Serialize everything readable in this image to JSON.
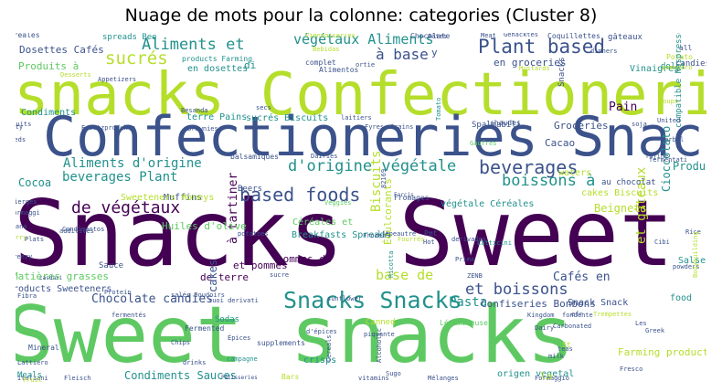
{
  "title": "Nuage de mots pour la colonne: categories (Cluster 8)",
  "colors": {
    "background": "#ffffff",
    "purple": "#440154",
    "indigo": "#3b528b",
    "teal": "#21918c",
    "green": "#5ec962",
    "lime": "#b5de2b"
  },
  "words": [
    {
      "text": "Sweet snacks",
      "color": "green"
    },
    {
      "text": "Snacks Sweet",
      "color": "purple"
    },
    {
      "text": "snacks Confectioneries",
      "color": "lime"
    },
    {
      "text": "Confectioneries Snack",
      "color": "indigo"
    },
    {
      "text": "Snacks Snacks",
      "color": "teal"
    },
    {
      "text": "Plant based",
      "color": "indigo"
    },
    {
      "text": "based foods",
      "color": "indigo"
    },
    {
      "text": "beverages",
      "color": "indigo"
    },
    {
      "text": "boissons à",
      "color": "teal"
    },
    {
      "text": "d'origine végétale",
      "color": "teal"
    },
    {
      "text": "de végétaux",
      "color": "purple"
    },
    {
      "text": "Aliments et",
      "color": "teal"
    },
    {
      "text": "végétaux Aliments",
      "color": "teal"
    },
    {
      "text": "sucrés",
      "color": "lime"
    },
    {
      "text": "à base",
      "color": "indigo"
    },
    {
      "text": "Aliments d'origine",
      "color": "teal"
    },
    {
      "text": "beverages Plant",
      "color": "teal"
    },
    {
      "text": "et boissons",
      "color": "indigo"
    },
    {
      "text": "base de",
      "color": "lime"
    },
    {
      "text": "Biscuits",
      "color": "lime"
    },
    {
      "text": "à tartiner",
      "color": "purple"
    },
    {
      "text": "Pasta",
      "color": "teal"
    },
    {
      "text": "Chocolate candies",
      "color": "indigo"
    },
    {
      "text": "Condiments Sauces",
      "color": "teal"
    },
    {
      "text": "Cafés en",
      "color": "indigo"
    },
    {
      "text": "et gâteaux",
      "color": "lime"
    },
    {
      "text": "Cioccolato",
      "color": "teal"
    },
    {
      "text": "Produits",
      "color": "teal"
    },
    {
      "text": "Beignets",
      "color": "lime"
    },
    {
      "text": "Groceries",
      "color": "indigo"
    },
    {
      "text": "Pain",
      "color": "purple"
    },
    {
      "text": "Cacao",
      "color": "indigo"
    },
    {
      "text": "en groceries",
      "color": "indigo"
    },
    {
      "text": "Dosettes Cafés",
      "color": "indigo"
    },
    {
      "text": "Produits à",
      "color": "green"
    },
    {
      "text": "en dosettes",
      "color": "teal"
    },
    {
      "text": "Condiments",
      "color": "teal"
    },
    {
      "text": "Céréales et",
      "color": "green"
    },
    {
      "text": "Breakfasts Spreads",
      "color": "teal"
    },
    {
      "text": "végétale Céréales",
      "color": "teal"
    },
    {
      "text": "cakes Biscuits",
      "color": "lime"
    },
    {
      "text": "Matières grasses",
      "color": "green"
    },
    {
      "text": "products Sweeteners",
      "color": "indigo"
    },
    {
      "text": "Huiles d'olive",
      "color": "green"
    },
    {
      "text": "Édulcorants",
      "color": "lime"
    },
    {
      "text": "Cocoa",
      "color": "teal"
    },
    {
      "text": "terre Pains",
      "color": "teal"
    },
    {
      "text": "sucrés Biscuits",
      "color": "teal"
    },
    {
      "text": "et pommes",
      "color": "purple"
    },
    {
      "text": "de terre",
      "color": "purple"
    },
    {
      "text": "pommes de",
      "color": "purple"
    },
    {
      "text": "Confiseries Bonbons",
      "color": "indigo"
    },
    {
      "text": "Snack Snack",
      "color": "indigo"
    },
    {
      "text": "food",
      "color": "teal"
    },
    {
      "text": "Farming products",
      "color": "lime"
    },
    {
      "text": "origen vegetal",
      "color": "teal"
    },
    {
      "text": "crisps",
      "color": "teal"
    },
    {
      "text": "cakes",
      "color": "indigo"
    },
    {
      "text": "Vinaigres",
      "color": "teal"
    },
    {
      "text": "Sauce",
      "color": "indigo"
    },
    {
      "text": "Muffins",
      "color": "indigo"
    },
    {
      "text": "Sweeteners Honeys",
      "color": "lime"
    },
    {
      "text": "Beers",
      "color": "indigo"
    },
    {
      "text": "waters",
      "color": "lime"
    },
    {
      "text": "au chocolat",
      "color": "indigo"
    },
    {
      "text": "Salse",
      "color": "teal"
    },
    {
      "text": "Sodas",
      "color": "teal"
    },
    {
      "text": "Canned",
      "color": "lime"
    },
    {
      "text": "Spalmabili",
      "color": "indigo"
    },
    {
      "text": "spreads Bee",
      "color": "teal"
    },
    {
      "text": "products Farming",
      "color": "teal"
    },
    {
      "text": "gâteaux",
      "color": "indigo"
    },
    {
      "text": "Potato",
      "color": "lime"
    },
    {
      "text": "candies",
      "color": "indigo"
    },
    {
      "text": "Coquillettes",
      "color": "indigo"
    },
    {
      "text": "Chocolate",
      "color": "indigo"
    },
    {
      "text": "Cereales",
      "color": "indigo"
    },
    {
      "text": "complet",
      "color": "indigo"
    },
    {
      "text": "Alimentos",
      "color": "indigo"
    },
    {
      "text": "Mustards",
      "color": "lime"
    },
    {
      "text": "dolci",
      "color": "teal"
    },
    {
      "text": "Appetizers",
      "color": "indigo"
    },
    {
      "text": "laitiers",
      "color": "indigo"
    },
    {
      "text": "chaudes",
      "color": "indigo"
    },
    {
      "text": "Snacks",
      "color": "indigo"
    },
    {
      "text": "compatible Nespresso",
      "color": "teal"
    },
    {
      "text": "Gaufres",
      "color": "green"
    },
    {
      "text": "balsamiques",
      "color": "indigo"
    },
    {
      "text": "fermentati",
      "color": "indigo"
    },
    {
      "text": "Fromages",
      "color": "indigo"
    },
    {
      "text": "Veggies",
      "color": "green"
    },
    {
      "text": "Mineral",
      "color": "indigo"
    },
    {
      "text": "Chips",
      "color": "indigo"
    },
    {
      "text": "Fermented",
      "color": "indigo"
    },
    {
      "text": "Légumineuses",
      "color": "green"
    },
    {
      "text": "Épices",
      "color": "indigo"
    },
    {
      "text": "supplements",
      "color": "indigo"
    },
    {
      "text": "campagne",
      "color": "teal"
    },
    {
      "text": "Bars",
      "color": "lime"
    },
    {
      "text": "drinks",
      "color": "indigo"
    },
    {
      "text": "Sugo",
      "color": "indigo"
    },
    {
      "text": "Formaggio",
      "color": "indigo"
    },
    {
      "text": "Mélanges",
      "color": "indigo"
    },
    {
      "text": "vitamins",
      "color": "indigo"
    },
    {
      "text": "Fresco",
      "color": "indigo"
    },
    {
      "text": "Greek",
      "color": "indigo"
    },
    {
      "text": "Carbonated",
      "color": "indigo"
    },
    {
      "text": "Rice",
      "color": "indigo"
    },
    {
      "text": "Cibi",
      "color": "indigo"
    },
    {
      "text": "powders",
      "color": "indigo"
    },
    {
      "text": "Ricotta",
      "color": "teal"
    },
    {
      "text": "Prima",
      "color": "indigo"
    },
    {
      "text": "Cereals",
      "color": "indigo"
    },
    {
      "text": "Alcoholic",
      "color": "indigo"
    },
    {
      "text": "Italiani",
      "color": "indigo"
    },
    {
      "text": "Meals",
      "color": "teal"
    },
    {
      "text": "Fleisch",
      "color": "indigo"
    },
    {
      "text": "Pâtisseries",
      "color": "indigo"
    },
    {
      "text": "Latticini",
      "color": "teal"
    },
    {
      "text": "Kingdom",
      "color": "indigo"
    },
    {
      "text": "Formaggi",
      "color": "indigo"
    },
    {
      "text": "vierges",
      "color": "indigo"
    },
    {
      "text": "additives",
      "color": "indigo"
    },
    {
      "text": "Protein",
      "color": "indigo"
    },
    {
      "text": "salés Boudoirs",
      "color": "indigo"
    },
    {
      "text": "sunflower",
      "color": "indigo"
    },
    {
      "text": "fondente",
      "color": "indigo"
    },
    {
      "text": "Trempettes",
      "color": "lime"
    },
    {
      "text": "Herbal",
      "color": "indigo"
    },
    {
      "text": "United",
      "color": "indigo"
    },
    {
      "text": "Soups",
      "color": "lime"
    },
    {
      "text": "Tomato",
      "color": "teal"
    },
    {
      "text": "Salty",
      "color": "indigo"
    },
    {
      "text": "Brownies",
      "color": "indigo"
    },
    {
      "text": "Ersatzprodukte",
      "color": "indigo"
    },
    {
      "text": "Meat",
      "color": "indigo"
    },
    {
      "text": "Gehacktes",
      "color": "indigo"
    },
    {
      "text": "Pâtes",
      "color": "indigo"
    },
    {
      "text": "pomodoro",
      "color": "lime"
    },
    {
      "text": "Viennoiseries",
      "color": "lime"
    },
    {
      "text": "Bebidas",
      "color": "lime"
    },
    {
      "text": "Desserts",
      "color": "lime"
    },
    {
      "text": "ortie",
      "color": "indigo"
    },
    {
      "text": "Farcis",
      "color": "indigo"
    },
    {
      "text": "potatoes",
      "color": "indigo"
    },
    {
      "text": "Fibra",
      "color": "indigo"
    },
    {
      "text": "fermentés",
      "color": "indigo"
    },
    {
      "text": "d'épices",
      "color": "indigo"
    },
    {
      "text": "piquante",
      "color": "indigo"
    },
    {
      "text": "suoi derivati",
      "color": "indigo"
    },
    {
      "text": "teas",
      "color": "indigo"
    },
    {
      "text": "milk",
      "color": "indigo"
    },
    {
      "text": "ZENB",
      "color": "indigo"
    },
    {
      "text": "Bodybuilding",
      "color": "lime"
    },
    {
      "text": "Campana",
      "color": "indigo"
    },
    {
      "text": "Cherry",
      "color": "lime"
    },
    {
      "text": "Plats",
      "color": "indigo"
    },
    {
      "text": "Cheeses",
      "color": "indigo"
    },
    {
      "text": "sucre",
      "color": "indigo"
    },
    {
      "text": "fajine",
      "color": "indigo"
    },
    {
      "text": "Fyres",
      "color": "indigo"
    },
    {
      "text": "Grains",
      "color": "indigo"
    },
    {
      "text": "Dairies",
      "color": "indigo"
    },
    {
      "text": "soja",
      "color": "indigo"
    },
    {
      "text": "secs",
      "color": "indigo"
    },
    {
      "text": "Besanda",
      "color": "indigo"
    },
    {
      "text": "Seeds",
      "color": "indigo"
    },
    {
      "text": "Fruits",
      "color": "indigo"
    },
    {
      "text": "82169",
      "color": "indigo"
    },
    {
      "text": "casdari",
      "color": "indigo"
    },
    {
      "text": "Freezy",
      "color": "indigo"
    },
    {
      "text": "Hot",
      "color": "indigo"
    },
    {
      "text": "Condimentos",
      "color": "indigo"
    },
    {
      "text": "Lattiero",
      "color": "indigo"
    },
    {
      "text": "Fruit",
      "color": "lime"
    },
    {
      "text": "Frozen",
      "color": "indigo"
    },
    {
      "text": "l'épeautre",
      "color": "indigo"
    },
    {
      "text": "Dairy",
      "color": "indigo"
    },
    {
      "text": "efr",
      "color": "indigo"
    },
    {
      "text": "derivados",
      "color": "indigo"
    },
    {
      "text": "Fourrés",
      "color": "lime"
    },
    {
      "text": "Les",
      "color": "indigo"
    },
    {
      "text": "Pmt",
      "color": "indigo"
    },
    {
      "text": "dinners",
      "color": "indigo"
    },
    {
      "text": "all",
      "color": "indigo"
    },
    {
      "text": "y",
      "color": "indigo"
    },
    {
      "text": "di",
      "color": "teal"
    },
    {
      "text": "la",
      "color": "lime"
    },
    {
      "text": "St",
      "color": "lime"
    }
  ]
}
